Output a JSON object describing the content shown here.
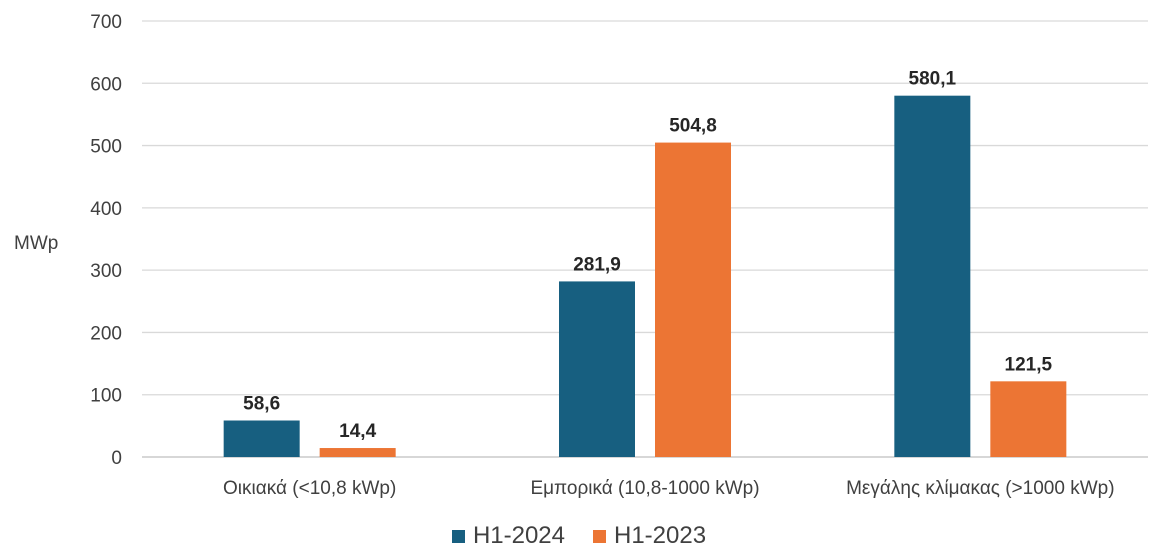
{
  "chart_data": {
    "type": "bar",
    "title": "",
    "xlabel": "",
    "ylabel": "MWp",
    "ylim": [
      0,
      700
    ],
    "yticks": [
      0,
      100,
      200,
      300,
      400,
      500,
      600,
      700
    ],
    "grid": true,
    "legend_position": "bottom",
    "categories": [
      "Οικιακά (<10,8 kWp)",
      "Εμπορικά (10,8-1000 kWp)",
      "Μεγάλης κλίμακας (>1000 kWp)"
    ],
    "series": [
      {
        "name": "H1-2024",
        "color": "#175F80",
        "values": [
          58.6,
          281.9,
          580.1
        ],
        "labels": [
          "58,6",
          "281,9",
          "580,1"
        ]
      },
      {
        "name": "H1-2023",
        "color": "#EC7534",
        "values": [
          14.4,
          504.8,
          121.5
        ],
        "labels": [
          "14,4",
          "504,8",
          "121,5"
        ]
      }
    ]
  }
}
